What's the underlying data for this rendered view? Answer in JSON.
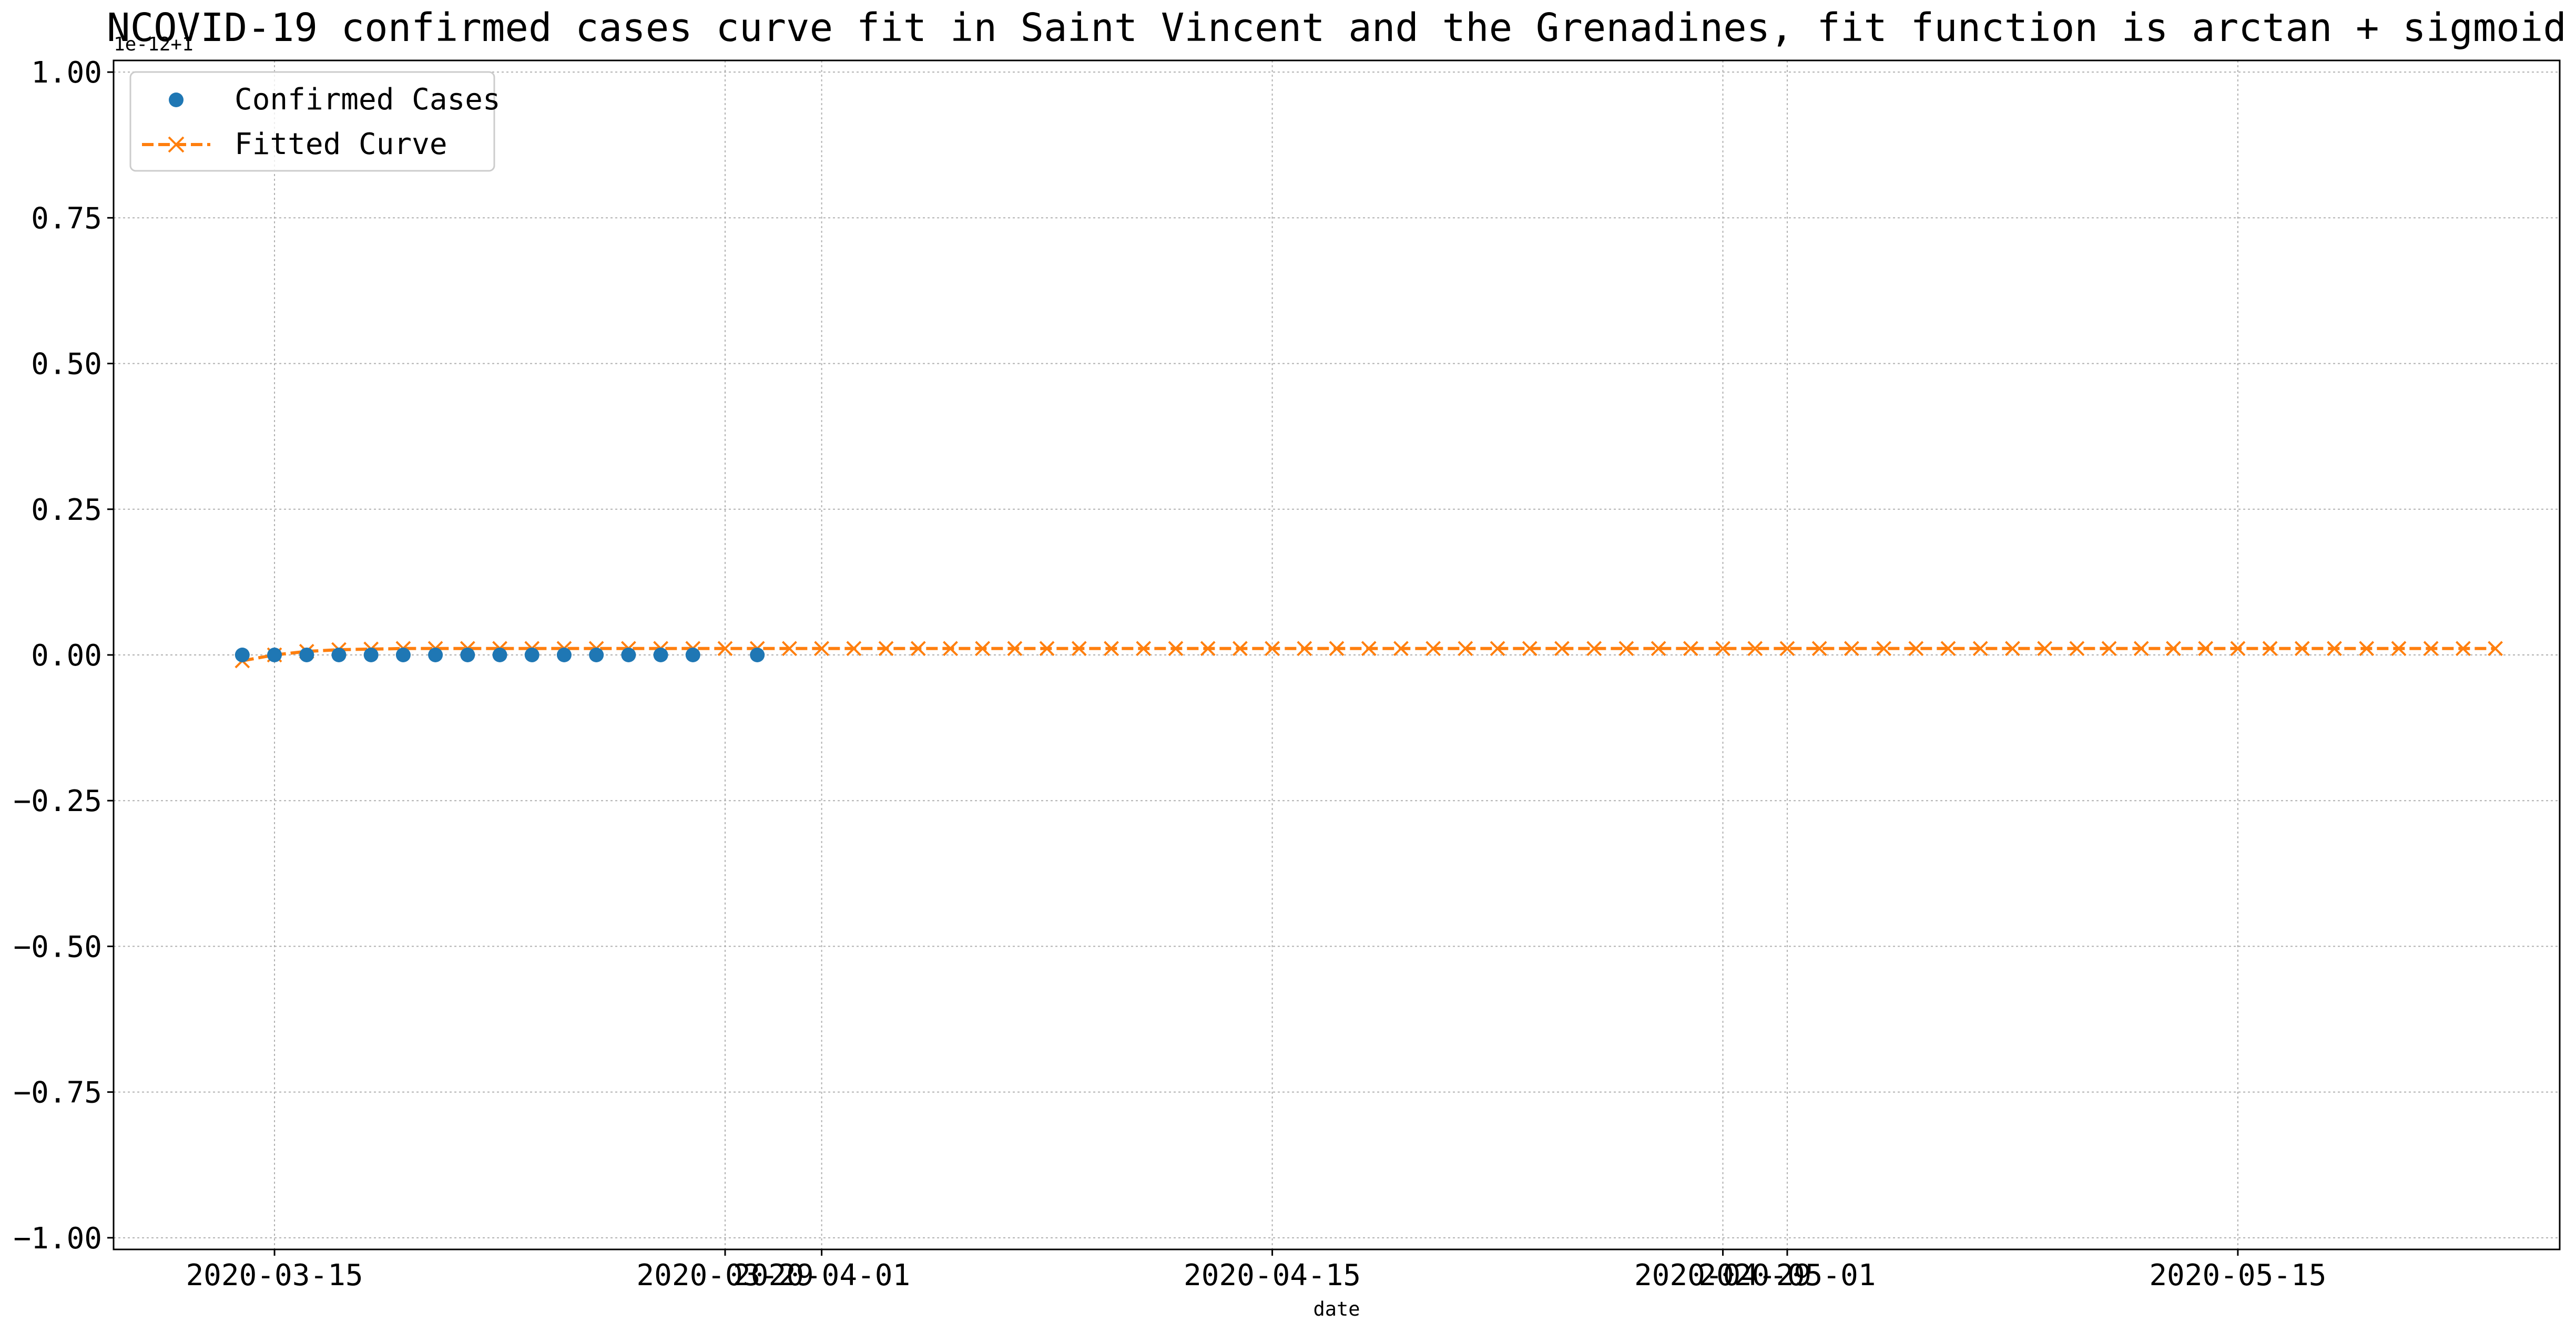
{
  "chart_data": {
    "type": "scatter",
    "title": "NCOVID-19 confirmed cases curve fit in Saint Vincent and the Grenadines, fit function is arctan + sigmoid",
    "xlabel": "date",
    "ylabel": "",
    "offset_label": "1e-12+1",
    "ylim": [
      -1.02,
      1.02
    ],
    "xlim": [
      "2020-03-10",
      "2020-05-25"
    ],
    "y_ticks": [
      {
        "value": 1.0,
        "label": "1.00"
      },
      {
        "value": 0.75,
        "label": "0.75"
      },
      {
        "value": 0.5,
        "label": "0.50"
      },
      {
        "value": 0.25,
        "label": "0.25"
      },
      {
        "value": 0.0,
        "label": "0.00"
      },
      {
        "value": -0.25,
        "label": "−0.25"
      },
      {
        "value": -0.5,
        "label": "−0.50"
      },
      {
        "value": -0.75,
        "label": "−0.75"
      },
      {
        "value": -1.0,
        "label": "−1.00"
      }
    ],
    "x_ticks": [
      {
        "date": "2020-03-15",
        "label": "2020-03-15"
      },
      {
        "date": "2020-03-29",
        "label": "2020-03-29"
      },
      {
        "date": "2020-04-01",
        "label": "2020-04-01"
      },
      {
        "date": "2020-04-15",
        "label": "2020-04-15"
      },
      {
        "date": "2020-04-29",
        "label": "2020-04-29"
      },
      {
        "date": "2020-05-01",
        "label": "2020-05-01"
      },
      {
        "date": "2020-05-15",
        "label": "2020-05-15"
      }
    ],
    "grid": true,
    "legend_position": "top-left",
    "series": [
      {
        "name": "Confirmed Cases",
        "style": "markers",
        "marker": "circle",
        "color": "#1f77b4",
        "x": [
          "2020-03-14",
          "2020-03-15",
          "2020-03-16",
          "2020-03-17",
          "2020-03-18",
          "2020-03-19",
          "2020-03-20",
          "2020-03-21",
          "2020-03-22",
          "2020-03-23",
          "2020-03-24",
          "2020-03-25",
          "2020-03-26",
          "2020-03-27",
          "2020-03-28",
          "2020-03-30"
        ],
        "y": [
          0,
          0,
          0,
          0,
          0,
          0,
          0,
          0,
          0,
          0,
          0,
          0,
          0,
          0,
          0,
          0
        ]
      },
      {
        "name": "Fitted Curve",
        "style": "dashed-line-with-x-markers",
        "marker": "x",
        "color": "#ff7f0e",
        "x_start": "2020-03-14",
        "x_end": "2020-05-23",
        "y": [
          -0.01,
          0.0,
          0.006,
          0.009,
          0.01,
          0.011,
          0.011,
          0.011,
          0.011,
          0.011,
          0.011,
          0.011,
          0.011,
          0.011,
          0.011,
          0.011,
          0.011,
          0.011,
          0.011,
          0.011,
          0.011,
          0.011,
          0.011,
          0.011,
          0.011,
          0.011,
          0.011,
          0.011,
          0.011,
          0.011,
          0.011,
          0.011,
          0.011,
          0.011,
          0.011,
          0.011,
          0.011,
          0.011,
          0.011,
          0.011,
          0.011,
          0.011,
          0.011,
          0.011,
          0.011,
          0.011,
          0.011,
          0.011,
          0.011,
          0.011,
          0.011,
          0.011,
          0.011,
          0.011,
          0.011,
          0.011,
          0.011,
          0.011,
          0.011,
          0.011,
          0.011,
          0.011,
          0.011,
          0.011,
          0.011,
          0.011,
          0.011,
          0.011,
          0.011,
          0.011,
          0.011
        ]
      }
    ]
  }
}
